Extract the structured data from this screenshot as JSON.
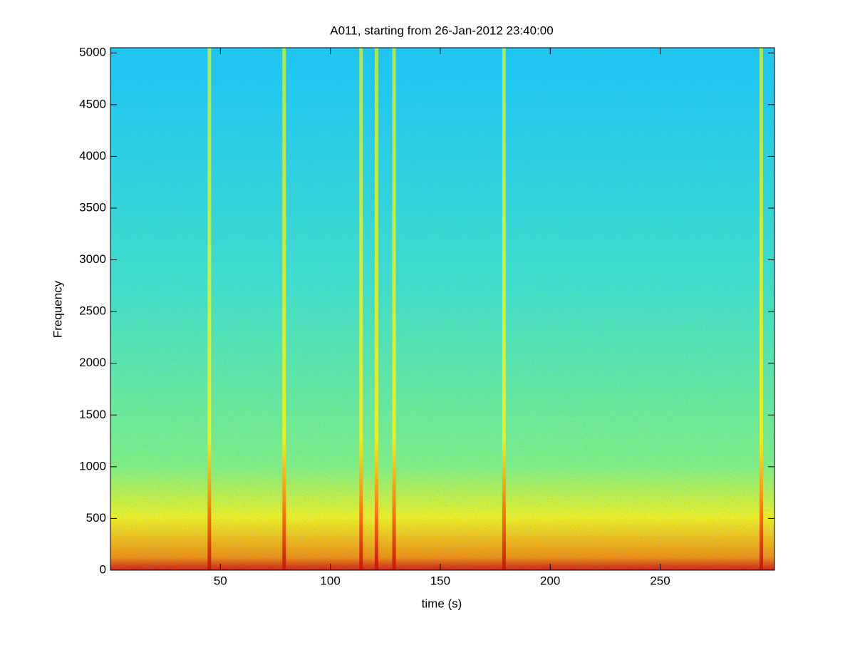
{
  "chart_data": {
    "type": "spectrogram",
    "title": "A011, starting from 26-Jan-2012 23:40:00",
    "x_label": "time (s)",
    "y_label": "Frequency",
    "xlim": [
      0,
      302
    ],
    "xticks": [
      50,
      100,
      150,
      200,
      250
    ],
    "ylim": [
      0,
      5050
    ],
    "yticks": [
      0,
      500,
      1000,
      1500,
      2000,
      2500,
      3000,
      3500,
      4000,
      4500,
      5000
    ],
    "colormap": [
      "#1a3cf0",
      "#20c8f0",
      "#40e0c8",
      "#80f080",
      "#f0f020",
      "#f09010",
      "#d02010"
    ],
    "x": [
      45,
      79,
      114,
      121,
      129,
      179,
      296
    ],
    "values": [
      5050,
      5050,
      5050,
      5050,
      5050,
      5050,
      5050
    ]
  }
}
